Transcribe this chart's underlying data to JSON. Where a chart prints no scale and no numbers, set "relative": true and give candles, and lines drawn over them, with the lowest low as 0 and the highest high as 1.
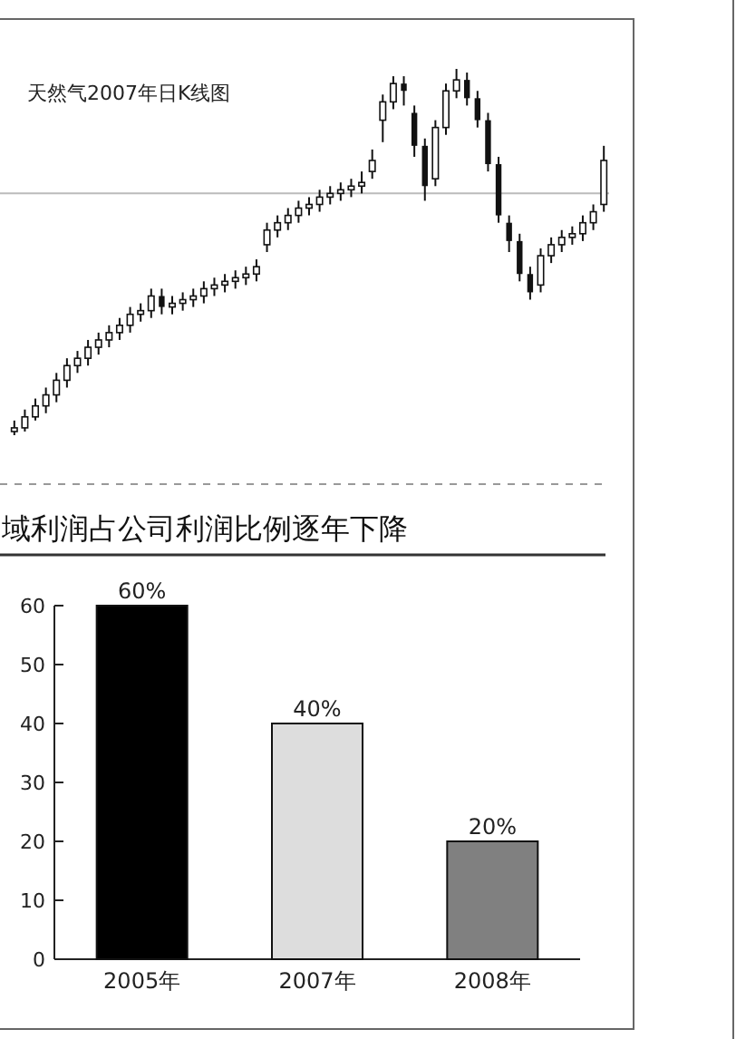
{
  "chart_data": [
    {
      "type": "candlestick",
      "title": "天然气2007年日K线图",
      "relative": true,
      "color": "#111111",
      "categories": [
        null,
        null,
        null,
        null,
        null,
        null,
        null,
        null,
        null,
        null,
        null,
        null,
        null,
        null,
        null,
        null,
        null,
        null,
        null,
        null,
        null,
        null,
        null,
        null,
        null,
        null,
        null,
        null,
        null,
        null,
        null,
        null,
        null,
        null,
        null,
        null,
        null,
        null,
        null,
        null,
        null,
        null,
        null,
        null,
        null,
        null,
        null,
        null,
        null,
        null,
        null,
        null,
        null,
        null,
        null,
        null,
        null
      ],
      "ohlc": [
        [
          0.01,
          0.04,
          0.0,
          0.02
        ],
        [
          0.02,
          0.07,
          0.01,
          0.05
        ],
        [
          0.05,
          0.1,
          0.04,
          0.08
        ],
        [
          0.08,
          0.13,
          0.06,
          0.11
        ],
        [
          0.11,
          0.17,
          0.09,
          0.15
        ],
        [
          0.15,
          0.21,
          0.13,
          0.19
        ],
        [
          0.19,
          0.23,
          0.17,
          0.21
        ],
        [
          0.21,
          0.26,
          0.19,
          0.24
        ],
        [
          0.24,
          0.28,
          0.22,
          0.26
        ],
        [
          0.26,
          0.3,
          0.24,
          0.28
        ],
        [
          0.28,
          0.32,
          0.26,
          0.3
        ],
        [
          0.3,
          0.35,
          0.28,
          0.33
        ],
        [
          0.33,
          0.36,
          0.31,
          0.34
        ],
        [
          0.34,
          0.4,
          0.32,
          0.38
        ],
        [
          0.38,
          0.4,
          0.33,
          0.35
        ],
        [
          0.35,
          0.38,
          0.33,
          0.36
        ],
        [
          0.36,
          0.39,
          0.34,
          0.37
        ],
        [
          0.37,
          0.4,
          0.35,
          0.38
        ],
        [
          0.38,
          0.42,
          0.36,
          0.4
        ],
        [
          0.4,
          0.43,
          0.38,
          0.41
        ],
        [
          0.41,
          0.44,
          0.39,
          0.42
        ],
        [
          0.42,
          0.45,
          0.4,
          0.43
        ],
        [
          0.43,
          0.46,
          0.41,
          0.44
        ],
        [
          0.44,
          0.48,
          0.42,
          0.46
        ],
        [
          0.52,
          0.58,
          0.5,
          0.56
        ],
        [
          0.56,
          0.6,
          0.54,
          0.58
        ],
        [
          0.58,
          0.62,
          0.56,
          0.6
        ],
        [
          0.6,
          0.64,
          0.58,
          0.62
        ],
        [
          0.62,
          0.65,
          0.6,
          0.63
        ],
        [
          0.63,
          0.67,
          0.61,
          0.65
        ],
        [
          0.65,
          0.68,
          0.63,
          0.66
        ],
        [
          0.66,
          0.69,
          0.64,
          0.67
        ],
        [
          0.67,
          0.7,
          0.65,
          0.68
        ],
        [
          0.68,
          0.72,
          0.66,
          0.69
        ],
        [
          0.72,
          0.78,
          0.7,
          0.75
        ],
        [
          0.86,
          0.93,
          0.8,
          0.91
        ],
        [
          0.91,
          0.98,
          0.89,
          0.96
        ],
        [
          0.96,
          0.98,
          0.9,
          0.94
        ],
        [
          0.88,
          0.9,
          0.76,
          0.79
        ],
        [
          0.79,
          0.81,
          0.64,
          0.68
        ],
        [
          0.7,
          0.86,
          0.68,
          0.84
        ],
        [
          0.84,
          0.96,
          0.82,
          0.94
        ],
        [
          0.94,
          1.0,
          0.92,
          0.97
        ],
        [
          0.97,
          0.99,
          0.9,
          0.92
        ],
        [
          0.92,
          0.94,
          0.84,
          0.86
        ],
        [
          0.86,
          0.88,
          0.72,
          0.74
        ],
        [
          0.74,
          0.76,
          0.58,
          0.6
        ],
        [
          0.58,
          0.6,
          0.5,
          0.53
        ],
        [
          0.53,
          0.55,
          0.42,
          0.44
        ],
        [
          0.44,
          0.46,
          0.37,
          0.39
        ],
        [
          0.41,
          0.51,
          0.39,
          0.49
        ],
        [
          0.49,
          0.54,
          0.47,
          0.52
        ],
        [
          0.52,
          0.56,
          0.5,
          0.54
        ],
        [
          0.54,
          0.57,
          0.52,
          0.55
        ],
        [
          0.55,
          0.6,
          0.53,
          0.58
        ],
        [
          0.58,
          0.63,
          0.56,
          0.61
        ],
        [
          0.63,
          0.79,
          0.61,
          0.75
        ]
      ],
      "ref_lines": [
        {
          "axis": "y",
          "value": 0.66,
          "color": "#bbbbbb"
        }
      ]
    },
    {
      "type": "bar",
      "title": "域利润占公司利润比例逐年下降",
      "categories": [
        "2005年",
        "2007年",
        "2008年"
      ],
      "values": [
        60,
        40,
        20
      ],
      "colors": [
        "#000000",
        "#dddddd",
        "#808080"
      ],
      "value_labels": [
        "60%",
        "40%",
        "20%"
      ],
      "ylim": [
        0,
        60
      ],
      "yticks": [
        0,
        10,
        20,
        30,
        40,
        50,
        60
      ]
    }
  ]
}
